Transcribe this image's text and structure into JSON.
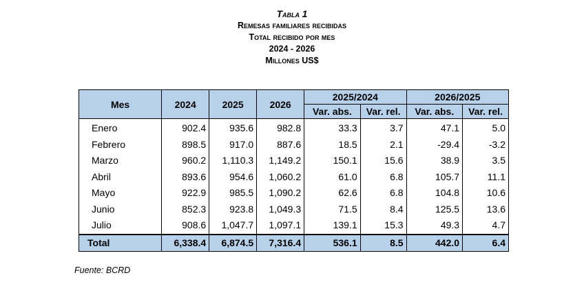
{
  "header": {
    "tabla": "Tabla 1",
    "titulo": "Remesas familiares recibidas",
    "subtitulo": "Total recibido por mes",
    "periodo": "2024 - 2026",
    "unidades": "Millones US$"
  },
  "table": {
    "col_mes": "Mes",
    "col_2024": "2024",
    "col_2025": "2025",
    "col_2026": "2026",
    "group_a": "2025/2024",
    "group_b": "2026/2025",
    "var_abs": "Var. abs.",
    "var_rel": "Var. rel.",
    "rows": [
      [
        "Enero",
        "902.4",
        "935.6",
        "982.8",
        "33.3",
        "3.7",
        "47.1",
        "5.0"
      ],
      [
        "Febrero",
        "898.5",
        "917.0",
        "887.6",
        "18.5",
        "2.1",
        "-29.4",
        "-3.2"
      ],
      [
        "Marzo",
        "960.2",
        "1,110.3",
        "1,149.2",
        "150.1",
        "15.6",
        "38.9",
        "3.5"
      ],
      [
        "Abril",
        "893.6",
        "954.6",
        "1,060.2",
        "61.0",
        "6.8",
        "105.7",
        "11.1"
      ],
      [
        "Mayo",
        "922.9",
        "985.5",
        "1,090.2",
        "62.6",
        "6.8",
        "104.8",
        "10.6"
      ],
      [
        "Junio",
        "852.3",
        "923.8",
        "1,049.3",
        "71.5",
        "8.4",
        "125.5",
        "13.6"
      ],
      [
        "Julio",
        "908.6",
        "1,047.7",
        "1,097.1",
        "139.1",
        "15.3",
        "49.3",
        "4.7"
      ]
    ],
    "total": [
      "Total",
      "6,338.4",
      "6,874.5",
      "7,316.4",
      "536.1",
      "8.5",
      "442.0",
      "6.4"
    ]
  },
  "footer": {
    "fuente": "Fuente: BCRD"
  },
  "colors": {
    "header_fill": "#b8d1ea",
    "border": "#000000"
  }
}
